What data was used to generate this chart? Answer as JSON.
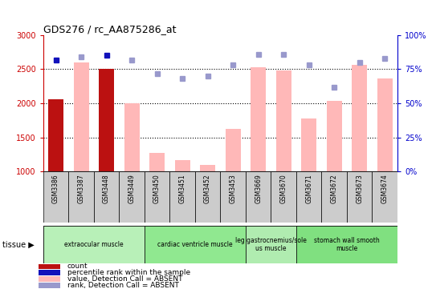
{
  "title": "GDS276 / rc_AA875286_at",
  "samples": [
    "GSM3386",
    "GSM3387",
    "GSM3448",
    "GSM3449",
    "GSM3450",
    "GSM3451",
    "GSM3452",
    "GSM3453",
    "GSM3669",
    "GSM3670",
    "GSM3671",
    "GSM3672",
    "GSM3673",
    "GSM3674"
  ],
  "bar_values": [
    2060,
    2600,
    2500,
    2000,
    1270,
    1170,
    1100,
    1620,
    2530,
    2480,
    1780,
    2030,
    2560,
    2370
  ],
  "bar_is_red": [
    true,
    false,
    true,
    false,
    false,
    false,
    false,
    false,
    false,
    false,
    false,
    false,
    false,
    false
  ],
  "dot_values": [
    82,
    84,
    85,
    82,
    72,
    68,
    70,
    78,
    86,
    86,
    78,
    62,
    80,
    83
  ],
  "ylim_left": [
    1000,
    3000
  ],
  "ylim_right": [
    0,
    100
  ],
  "yticks_left": [
    1000,
    1500,
    2000,
    2500,
    3000
  ],
  "yticks_right": [
    0,
    25,
    50,
    75,
    100
  ],
  "hlines": [
    1500,
    2000,
    2500
  ],
  "tissue_groups": [
    {
      "label": "extraocular muscle",
      "start": 0,
      "end": 3,
      "color": "#b8f0b8"
    },
    {
      "label": "cardiac ventricle muscle",
      "start": 4,
      "end": 7,
      "color": "#90e890"
    },
    {
      "label": "leg gastrocnemius/soleus muscle",
      "start": 8,
      "end": 9,
      "color": "#b0ecb0"
    },
    {
      "label": "stomach wall smooth muscle",
      "start": 10,
      "end": 13,
      "color": "#80e080"
    }
  ],
  "bar_color_red": "#bb1111",
  "bar_color_pink": "#ffb8b8",
  "dot_color_dark": "#1111bb",
  "dot_color_light": "#9999cc",
  "bg_color": "#ffffff",
  "left_tick_color": "#cc0000",
  "right_tick_color": "#0000cc",
  "gray_bg": "#cccccc",
  "tissue_label": "tissue",
  "legend_items": [
    {
      "color": "#bb1111",
      "label": "count"
    },
    {
      "color": "#1111bb",
      "label": "percentile rank within the sample"
    },
    {
      "color": "#ffb8b8",
      "label": "value, Detection Call = ABSENT"
    },
    {
      "color": "#9999cc",
      "label": "rank, Detection Call = ABSENT"
    }
  ]
}
